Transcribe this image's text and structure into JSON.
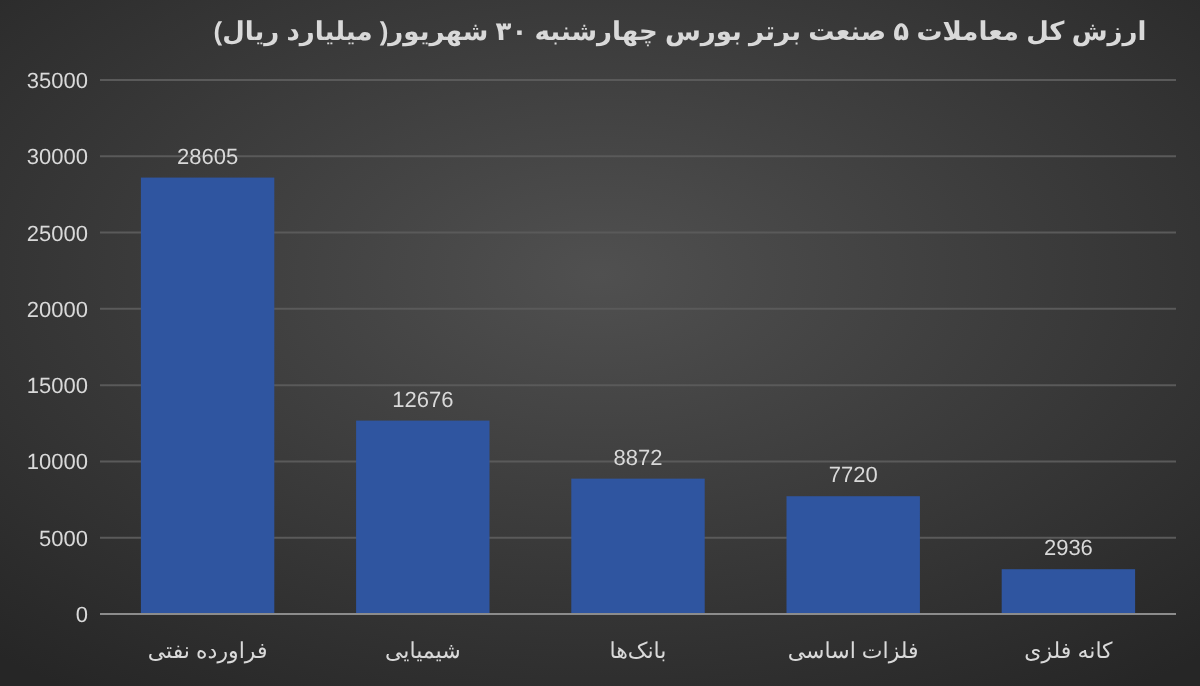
{
  "chart_data": {
    "type": "bar",
    "title": "ارزش کل معاملات ۵ صنعت برتر بورس چهارشنبه ۳۰ شهریور( میلیارد ریال)",
    "categories": [
      "فراورده نفتی",
      "شیمیایی",
      "بانک‌ها",
      "فلزات اساسی",
      "کانه فلزی"
    ],
    "values": [
      28605,
      12676,
      8872,
      7720,
      2936
    ],
    "color": "#2f55a0",
    "ylim": [
      0,
      35000
    ],
    "yticks": [
      0,
      5000,
      10000,
      15000,
      20000,
      25000,
      30000,
      35000
    ],
    "grid": "y",
    "data_labels": true
  }
}
